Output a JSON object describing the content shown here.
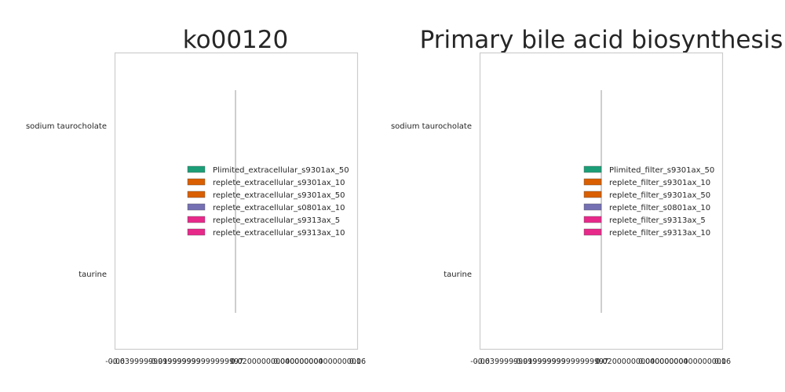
{
  "chart_data": [
    {
      "type": "bar",
      "orientation": "horizontal",
      "title": "ko00120",
      "xlabel": "",
      "ylabel": "",
      "categories": [
        "sodium taurocholate",
        "taurine"
      ],
      "xlim": [
        -0.06,
        0.06
      ],
      "xticks": [
        "-0.06",
        "-0.03999999999999999",
        "-0.019999999999999997",
        "0.0",
        "0.020000000000000004",
        "0.04000000000000001",
        "0.06"
      ],
      "grid": false,
      "legend_position": "center-right",
      "series": [
        {
          "name": "Plimited_extracellular_s9301ax_50",
          "color": "#1b9e77",
          "values": [
            0,
            0
          ]
        },
        {
          "name": "replete_extracellular_s9301ax_10",
          "color": "#d95f02",
          "values": [
            0,
            0
          ]
        },
        {
          "name": "replete_extracellular_s9301ax_50",
          "color": "#d95f02",
          "values": [
            0,
            0
          ]
        },
        {
          "name": "replete_extracellular_s0801ax_10",
          "color": "#7570b3",
          "values": [
            0,
            0
          ]
        },
        {
          "name": "replete_extracellular_s9313ax_5",
          "color": "#e7298a",
          "values": [
            0,
            0
          ]
        },
        {
          "name": "replete_extracellular_s9313ax_10",
          "color": "#e7298a",
          "values": [
            0,
            0
          ]
        }
      ]
    },
    {
      "type": "bar",
      "orientation": "horizontal",
      "title": "Primary bile acid biosynthesis",
      "xlabel": "",
      "ylabel": "",
      "categories": [
        "sodium taurocholate",
        "taurine"
      ],
      "xlim": [
        -0.06,
        0.06
      ],
      "xticks": [
        "-0.06",
        "-0.03999999999999999",
        "-0.019999999999999997",
        "0.0",
        "0.020000000000000004",
        "0.04000000000000001",
        "0.06"
      ],
      "grid": false,
      "legend_position": "center-right",
      "series": [
        {
          "name": "Plimited_filter_s9301ax_50",
          "color": "#1b9e77",
          "values": [
            0,
            0
          ]
        },
        {
          "name": "replete_filter_s9301ax_10",
          "color": "#d95f02",
          "values": [
            0,
            0
          ]
        },
        {
          "name": "replete_filter_s9301ax_50",
          "color": "#d95f02",
          "values": [
            0,
            0
          ]
        },
        {
          "name": "replete_filter_s0801ax_10",
          "color": "#7570b3",
          "values": [
            0,
            0
          ]
        },
        {
          "name": "replete_filter_s9313ax_5",
          "color": "#e7298a",
          "values": [
            0,
            0
          ]
        },
        {
          "name": "replete_filter_s9313ax_10",
          "color": "#e7298a",
          "values": [
            0,
            0
          ]
        }
      ]
    }
  ]
}
